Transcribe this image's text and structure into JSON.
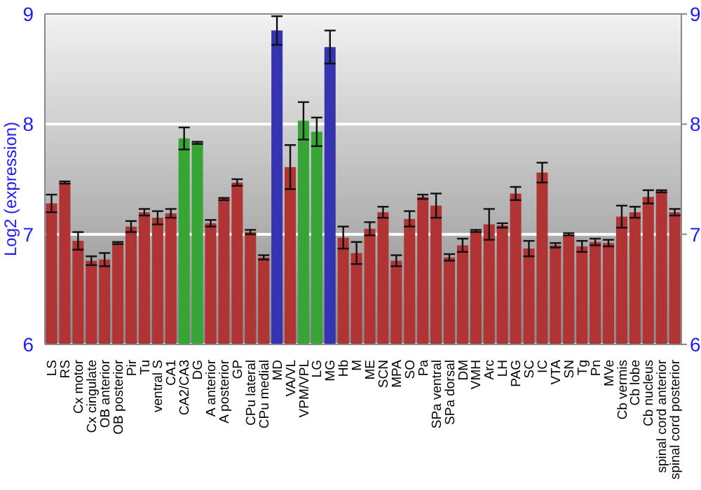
{
  "chart_data": {
    "type": "bar",
    "ylabel": "Log2 (expression)",
    "categories": [
      "LS",
      "RS",
      "Cx motor",
      "Cx cingulate",
      "OB anterior",
      "OB posterior",
      "Pir",
      "Tu",
      "ventral S",
      "CA1",
      "CA2/CA3",
      "DG",
      "A anterior",
      "A posterior",
      "GP",
      "CPu lateral",
      "CPu medial",
      "MD",
      "VA/VL",
      "VPM/VPL",
      "LG",
      "MG",
      "Hb",
      "M",
      "ME",
      "SCN",
      "MPA",
      "SO",
      "Pa",
      "SPa ventral",
      "SPa dorsal",
      "DM",
      "VMH",
      "Arc",
      "LH",
      "PAG",
      "SC",
      "IC",
      "VTA",
      "SN",
      "Tg",
      "Pn",
      "MVe",
      "Cb vermis",
      "Cb lobe",
      "Cb nucleus",
      "spinal cord anterior",
      "spinal cord posterior"
    ],
    "values": [
      7.28,
      7.47,
      6.94,
      6.76,
      6.77,
      6.92,
      7.07,
      7.2,
      7.15,
      7.19,
      7.87,
      7.83,
      7.1,
      7.32,
      7.47,
      7.02,
      6.79,
      8.85,
      7.61,
      8.03,
      7.93,
      8.7,
      6.97,
      6.83,
      7.05,
      7.2,
      6.76,
      7.14,
      7.34,
      7.26,
      6.79,
      6.9,
      7.03,
      7.09,
      7.08,
      7.37,
      6.87,
      7.56,
      6.9,
      7,
      6.89,
      6.93,
      6.92,
      7.16,
      7.2,
      7.34,
      7.39,
      7.2
    ],
    "errors": [
      0.08,
      0.01,
      0.08,
      0.04,
      0.06,
      0.01,
      0.05,
      0.03,
      0.06,
      0.04,
      0.1,
      0.01,
      0.03,
      0.01,
      0.03,
      0.02,
      0.02,
      0.13,
      0.2,
      0.17,
      0.13,
      0.15,
      0.1,
      0.1,
      0.06,
      0.05,
      0.05,
      0.07,
      0.02,
      0.11,
      0.03,
      0.06,
      0.01,
      0.14,
      0.02,
      0.06,
      0.07,
      0.09,
      0.02,
      0.01,
      0.05,
      0.03,
      0.03,
      0.1,
      0.05,
      0.06,
      0.01,
      0.03
    ],
    "colors": [
      "#b03434",
      "#b03434",
      "#b03434",
      "#b03434",
      "#b03434",
      "#b03434",
      "#b03434",
      "#b03434",
      "#b03434",
      "#b03434",
      "#36a536",
      "#36a536",
      "#b03434",
      "#b03434",
      "#b03434",
      "#b03434",
      "#b03434",
      "#3434b0",
      "#b03434",
      "#36a536",
      "#36a536",
      "#3434b0",
      "#b03434",
      "#b03434",
      "#b03434",
      "#b03434",
      "#b03434",
      "#b03434",
      "#b03434",
      "#b03434",
      "#b03434",
      "#b03434",
      "#b03434",
      "#b03434",
      "#b03434",
      "#b03434",
      "#b03434",
      "#b03434",
      "#b03434",
      "#b03434",
      "#b03434",
      "#b03434",
      "#b03434",
      "#b03434",
      "#b03434",
      "#b03434",
      "#b03434",
      "#b03434"
    ],
    "ylim": [
      6,
      9
    ],
    "yticks": [
      6,
      7,
      8,
      9
    ],
    "y2lim": [
      6,
      9
    ],
    "y2ticks": [
      6,
      7,
      8,
      9
    ],
    "grid": "y"
  }
}
